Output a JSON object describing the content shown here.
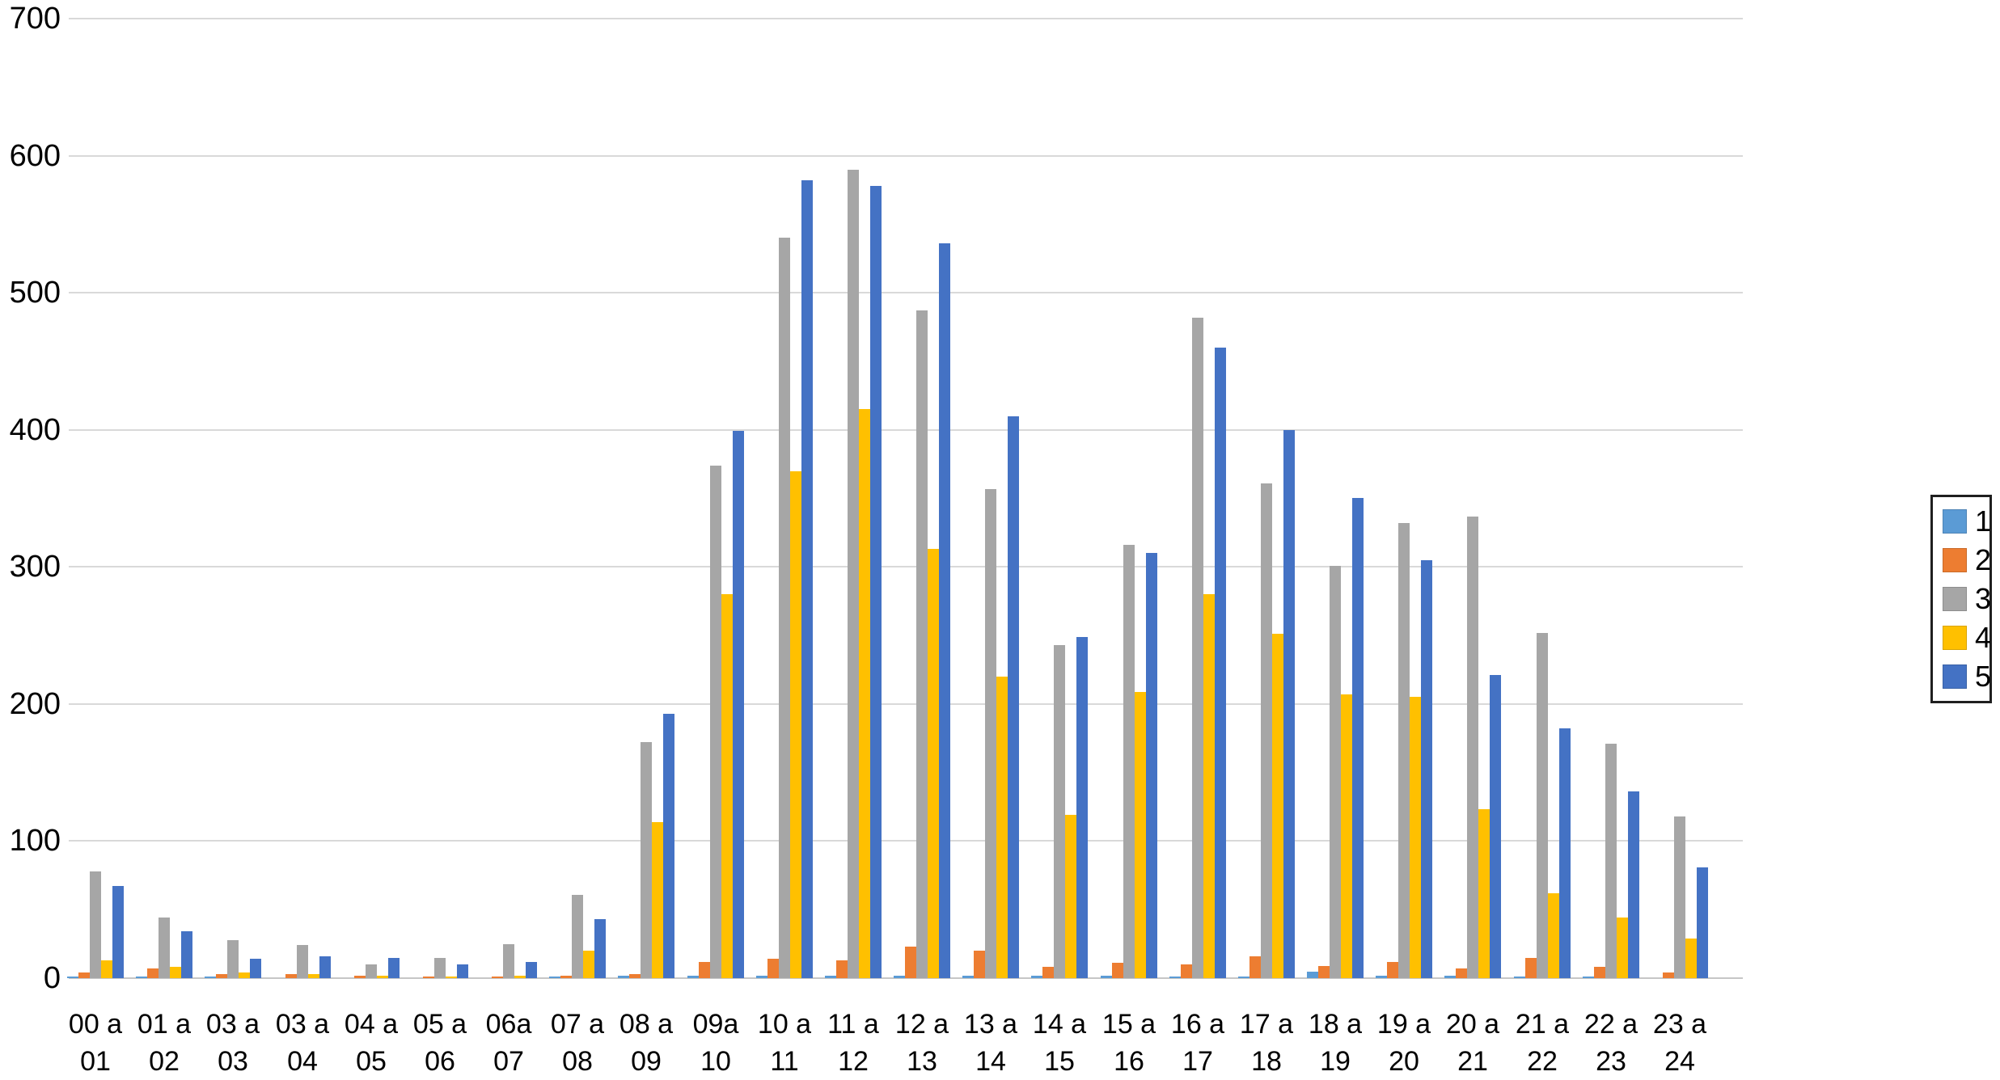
{
  "chart_data": {
    "type": "bar",
    "title": "",
    "xlabel": "",
    "ylabel": "",
    "grid": true,
    "legend_position": "right",
    "ylim": [
      0,
      700
    ],
    "yticks": [
      "0",
      "100",
      "200",
      "300",
      "400",
      "500",
      "600",
      "700"
    ],
    "categories": [
      {
        "line1": "00 a",
        "line2": "01"
      },
      {
        "line1": "01 a",
        "line2": "02"
      },
      {
        "line1": "03 a",
        "line2": "03"
      },
      {
        "line1": "03 a",
        "line2": "04"
      },
      {
        "line1": "04 a",
        "line2": "05"
      },
      {
        "line1": "05 a",
        "line2": "06"
      },
      {
        "line1": "06a",
        "line2": "07"
      },
      {
        "line1": "07 a",
        "line2": "08"
      },
      {
        "line1": "08 a",
        "line2": "09"
      },
      {
        "line1": "09a",
        "line2": "10"
      },
      {
        "line1": "10 a",
        "line2": "11"
      },
      {
        "line1": "11 a",
        "line2": "12"
      },
      {
        "line1": "12 a",
        "line2": "13"
      },
      {
        "line1": "13 a",
        "line2": "14"
      },
      {
        "line1": "14 a",
        "line2": "15"
      },
      {
        "line1": "15 a",
        "line2": "16"
      },
      {
        "line1": "16 a",
        "line2": "17"
      },
      {
        "line1": "17 a",
        "line2": "18"
      },
      {
        "line1": "18 a",
        "line2": "19"
      },
      {
        "line1": "19 a",
        "line2": "20"
      },
      {
        "line1": "20 a",
        "line2": "21"
      },
      {
        "line1": "21 a",
        "line2": "22"
      },
      {
        "line1": "22 a",
        "line2": "23"
      },
      {
        "line1": "23 a",
        "line2": "24"
      }
    ],
    "series": [
      {
        "name": "1",
        "color": "#5B9BD5",
        "values": [
          1,
          1,
          1,
          0,
          0,
          0,
          0,
          1,
          2,
          2,
          2,
          2,
          2,
          2,
          2,
          2,
          1,
          1,
          5,
          2,
          2,
          1,
          1,
          0
        ]
      },
      {
        "name": "2",
        "color": "#ED7D31",
        "values": [
          4,
          7,
          3,
          3,
          2,
          1,
          1,
          2,
          3,
          12,
          14,
          13,
          23,
          20,
          8,
          11,
          10,
          16,
          9,
          12,
          7,
          15,
          8,
          4
        ]
      },
      {
        "name": "3",
        "color": "#A6A6A6",
        "values": [
          78,
          44,
          28,
          24,
          10,
          15,
          25,
          61,
          172,
          374,
          540,
          590,
          487,
          357,
          243,
          316,
          482,
          361,
          301,
          332,
          337,
          252,
          171,
          118
        ]
      },
      {
        "name": "4",
        "color": "#FFC000",
        "values": [
          13,
          8,
          4,
          3,
          2,
          1,
          2,
          20,
          114,
          280,
          370,
          415,
          313,
          220,
          119,
          209,
          280,
          251,
          207,
          205,
          123,
          62,
          44,
          29
        ]
      },
      {
        "name": "5",
        "color": "#4472C4",
        "values": [
          67,
          34,
          14,
          16,
          15,
          10,
          12,
          43,
          193,
          399,
          582,
          578,
          536,
          410,
          249,
          310,
          460,
          400,
          350,
          305,
          221,
          182,
          136,
          81
        ]
      }
    ]
  }
}
